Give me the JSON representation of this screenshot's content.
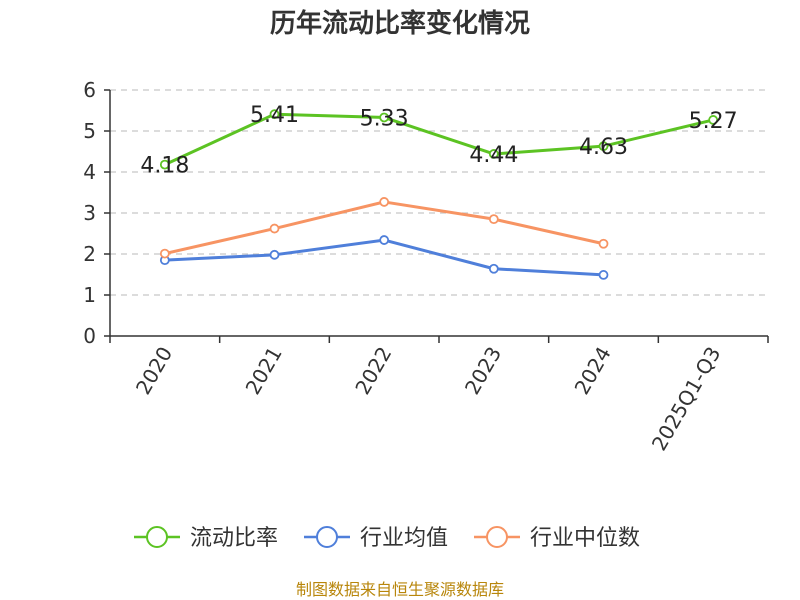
{
  "chart_data": {
    "type": "line",
    "title": "历年流动比率变化情况",
    "categories": [
      "2020",
      "2021",
      "2022",
      "2023",
      "2024",
      "2025Q1-Q3"
    ],
    "ylim": [
      0,
      6
    ],
    "yticks": [
      0,
      1,
      2,
      3,
      4,
      5,
      6
    ],
    "grid": true,
    "legend_position": "bottom",
    "series": [
      {
        "name": "流动比率",
        "color": "#5cc323",
        "values": [
          4.18,
          5.41,
          5.33,
          4.44,
          4.63,
          5.27
        ],
        "labels": [
          "4.18",
          "5.41",
          "5.33",
          "4.44",
          "4.63",
          "5.27"
        ]
      },
      {
        "name": "行业均值",
        "color": "#4f7fda",
        "values": [
          1.85,
          1.98,
          2.34,
          1.64,
          1.49,
          null
        ]
      },
      {
        "name": "行业中位数",
        "color": "#f79463",
        "values": [
          2.01,
          2.62,
          3.27,
          2.85,
          2.25,
          null
        ]
      }
    ],
    "source": "制图数据来自恒生聚源数据库"
  }
}
